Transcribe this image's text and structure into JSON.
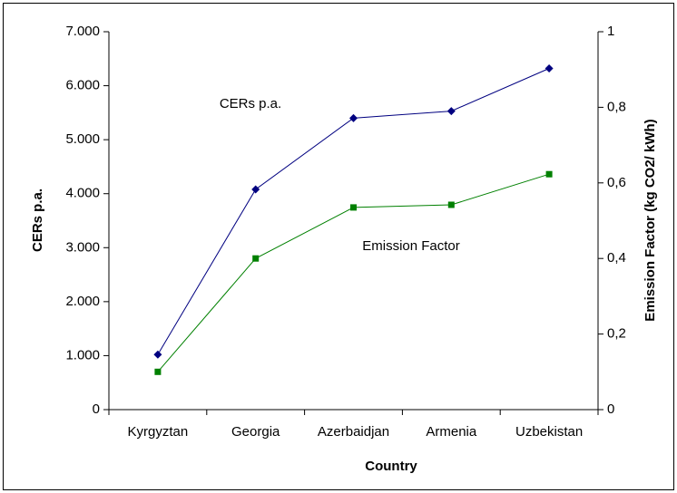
{
  "chart_data": {
    "type": "line",
    "x_label": "Country",
    "y_label": "CERs p.a.",
    "y2_label": "Emission Factor (kg CO2/ kWh)",
    "categories": [
      "Kyrgyztan",
      "Georgia",
      "Azerbaidjan",
      "Armenia",
      "Uzbekistan"
    ],
    "series": [
      {
        "name": "CERs p.a.",
        "color": "#000080",
        "marker": "diamond",
        "values": [
          1020,
          4080,
          5400,
          5530,
          6320
        ]
      },
      {
        "name": "Emission Factor",
        "color": "#008000",
        "marker": "square",
        "axis": "y2",
        "values": [
          0.1,
          0.4,
          0.535,
          0.542,
          0.623
        ]
      }
    ],
    "ylim": [
      0,
      7000
    ],
    "yticks": [
      0,
      {
        "value": 1000,
        "label": "1.000"
      },
      {
        "value": 2000,
        "label": "2.000"
      },
      {
        "value": 3000,
        "label": "3.000"
      },
      {
        "value": 4000,
        "label": "4.000"
      },
      {
        "value": 5000,
        "label": "5.000"
      },
      {
        "value": 6000,
        "label": "6.000"
      },
      {
        "value": 7000,
        "label": "7.000"
      }
    ],
    "y2lim": [
      0,
      1
    ],
    "y2ticks": [
      0,
      {
        "value": 0.2,
        "label": "0,2"
      },
      {
        "value": 0.4,
        "label": "0,4"
      },
      {
        "value": 0.6,
        "label": "0,6"
      },
      {
        "value": 0.8,
        "label": "0,8"
      },
      1
    ],
    "grid": false
  }
}
